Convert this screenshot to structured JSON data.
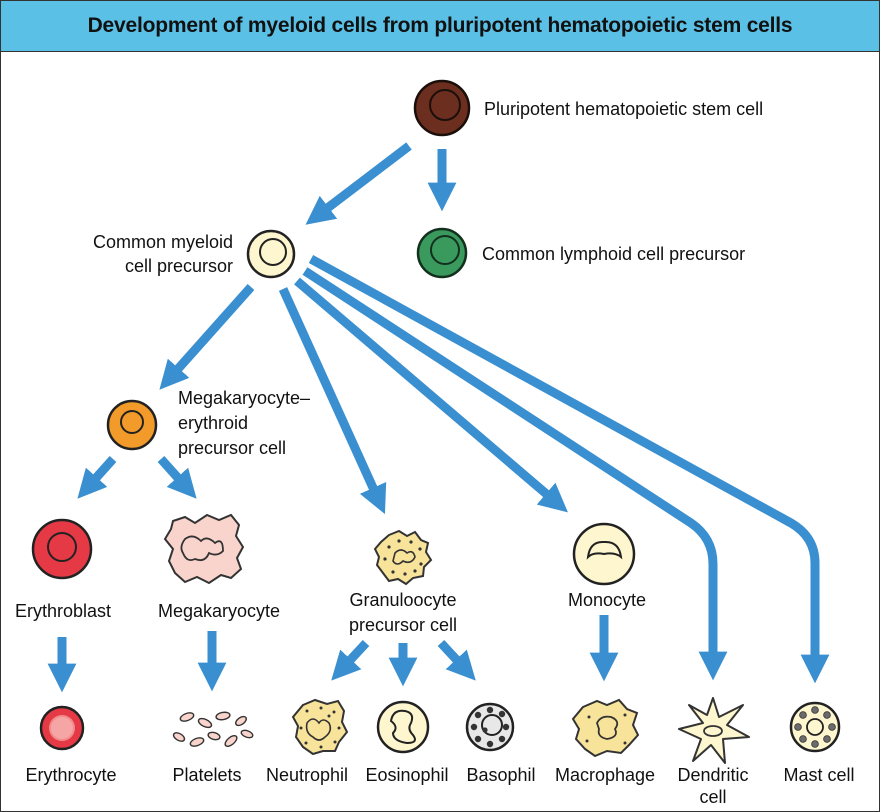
{
  "title": "Development of myeloid cells from pluripotent hematopoietic stem cells",
  "colors": {
    "arrow": "#3a8fd0",
    "title_bg": "#5bc0e6",
    "stem_cell": "#6b2e1f",
    "lymphoid": "#3a9a5e",
    "myeloid": "#fdf6cf",
    "mep": "#f29b2a",
    "erythroblast": "#e63946",
    "megakaryocyte": "#f9d4cd",
    "granulocyte": "#f8e39a",
    "monocyte": "#fdf6cf"
  },
  "nodes": {
    "stem": {
      "label": "Pluripotent hematopoietic stem cell"
    },
    "lymphoid": {
      "label": "Common lymphoid cell precursor"
    },
    "myeloid": {
      "lines": [
        "Common myeloid",
        "cell precursor"
      ]
    },
    "mep": {
      "lines": [
        "Megakaryocyte–",
        "erythroid",
        "precursor cell"
      ]
    },
    "erythroblast": {
      "label": "Erythroblast"
    },
    "megakaryocyte": {
      "label": "Megakaryocyte"
    },
    "granulocyte": {
      "lines": [
        "Granuloocyte",
        "precursor cell"
      ]
    },
    "monocyte": {
      "label": "Monocyte"
    },
    "erythrocyte": {
      "label": "Erythrocyte"
    },
    "platelets": {
      "label": "Platelets"
    },
    "neutrophil": {
      "label": "Neutrophil"
    },
    "eosinophil": {
      "label": "Eosinophil"
    },
    "basophil": {
      "label": "Basophil"
    },
    "macrophage": {
      "label": "Macrophage"
    },
    "dendritic": {
      "lines": [
        "Dendritic",
        "cell"
      ]
    },
    "mast": {
      "label": "Mast cell"
    }
  }
}
